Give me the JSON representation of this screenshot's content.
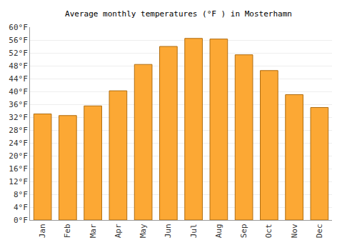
{
  "chart_data": {
    "type": "bar",
    "title": "Average monthly temperatures (°F ) in Mosterhamn",
    "categories": [
      "Jan",
      "Feb",
      "Mar",
      "Apr",
      "May",
      "Jun",
      "Jul",
      "Aug",
      "Sep",
      "Oct",
      "Nov",
      "Dec"
    ],
    "values": [
      33,
      32.5,
      35.5,
      40.2,
      48.4,
      54,
      56.5,
      56.3,
      51.4,
      46.5,
      39,
      35
    ],
    "color": "#fca834",
    "ylim": [
      0,
      60
    ],
    "yticks": [
      {
        "value": 0,
        "label": "0°F"
      },
      {
        "value": 4,
        "label": "4°F"
      },
      {
        "value": 8,
        "label": "8°F"
      },
      {
        "value": 12,
        "label": "12°F"
      },
      {
        "value": 16,
        "label": "16°F"
      },
      {
        "value": 20,
        "label": "20°F"
      },
      {
        "value": 24,
        "label": "24°F"
      },
      {
        "value": 28,
        "label": "28°F"
      },
      {
        "value": 32,
        "label": "32°F"
      },
      {
        "value": 36,
        "label": "36°F"
      },
      {
        "value": 40,
        "label": "40°F"
      },
      {
        "value": 44,
        "label": "44°F"
      },
      {
        "value": 48,
        "label": "48°F"
      },
      {
        "value": 52,
        "label": "52°F"
      },
      {
        "value": 56,
        "label": "56°F"
      },
      {
        "value": 60,
        "label": "60°F"
      }
    ],
    "grid": true
  }
}
